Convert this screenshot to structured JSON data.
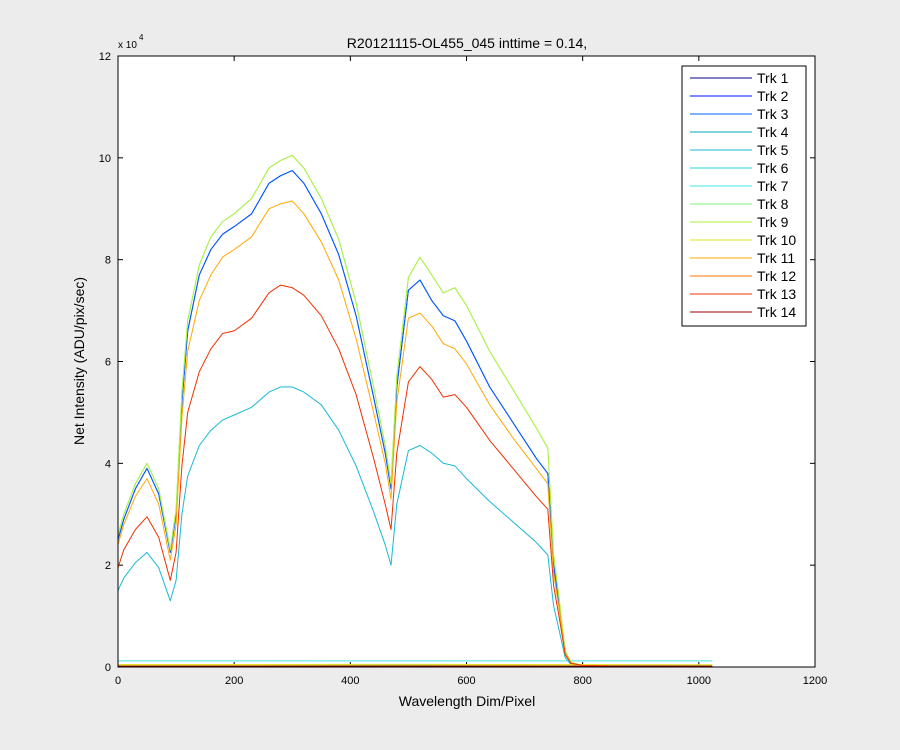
{
  "chart_data": {
    "type": "line",
    "title": "R20121115-OL455_045 inttime = 0.14,",
    "xlabel": "Wavelength Dim/Pixel",
    "ylabel": "Net Intensity (ADU/pix/sec)",
    "y_multiplier": "x 10",
    "y_multiplier_exponent": "4",
    "xlim": [
      0,
      1200
    ],
    "ylim": [
      0,
      120000
    ],
    "x_ticks": [
      0,
      200,
      400,
      600,
      800,
      1000,
      1200
    ],
    "x_tick_labels": [
      "0",
      "200",
      "400",
      "600",
      "800",
      "1000",
      "1200"
    ],
    "y_ticks": [
      0,
      20000,
      40000,
      60000,
      80000,
      100000,
      120000
    ],
    "y_tick_labels": [
      "0",
      "2",
      "4",
      "6",
      "8",
      "10",
      "12"
    ],
    "grid": false,
    "legend_position": "top-right",
    "series": [
      {
        "name": "Trk 1",
        "color": "#00008f",
        "x": [
          0,
          500,
          1023
        ],
        "y": [
          150,
          180,
          100
        ]
      },
      {
        "name": "Trk 2",
        "color": "#0010ff",
        "x": [
          0,
          10,
          30,
          50,
          70,
          90,
          100,
          110,
          120,
          140,
          160,
          180,
          200,
          230,
          260,
          280,
          300,
          320,
          350,
          380,
          410,
          440,
          460,
          470,
          480,
          500,
          520,
          540,
          560,
          580,
          600,
          640,
          680,
          720,
          740,
          750,
          760,
          770,
          780,
          800,
          850,
          1023
        ],
        "y": [
          25000,
          29000,
          35000,
          39000,
          34000,
          22500,
          30000,
          52000,
          66000,
          77000,
          82000,
          85000,
          86500,
          89000,
          95000,
          96500,
          97500,
          95000,
          89000,
          81000,
          69000,
          53000,
          42000,
          35000,
          55000,
          74000,
          76000,
          72000,
          69000,
          68000,
          64000,
          55000,
          48000,
          41000,
          38000,
          20000,
          12000,
          3000,
          800,
          300,
          200,
          200
        ]
      },
      {
        "name": "Trk 3",
        "color": "#0060ff",
        "x": [
          0,
          10,
          30,
          50,
          70,
          90,
          100,
          110,
          120,
          140,
          160,
          180,
          200,
          230,
          260,
          280,
          300,
          320,
          350,
          380,
          410,
          440,
          460,
          470,
          480,
          500,
          520,
          540,
          560,
          580,
          600,
          640,
          680,
          720,
          740,
          750,
          760,
          770,
          780,
          800,
          850,
          1023
        ],
        "y": [
          25000,
          29000,
          35000,
          39000,
          34000,
          22500,
          30000,
          52000,
          66000,
          77000,
          82000,
          85000,
          86500,
          89000,
          95000,
          96500,
          97500,
          95000,
          89000,
          81000,
          69000,
          53000,
          42000,
          35000,
          55000,
          74000,
          76000,
          72000,
          69000,
          68000,
          64000,
          55000,
          48000,
          41000,
          38000,
          20000,
          12000,
          3000,
          800,
          300,
          200,
          200
        ]
      },
      {
        "name": "Trk 4",
        "color": "#00a8c0",
        "x": [
          0,
          500,
          1023
        ],
        "y": [
          300,
          320,
          250
        ]
      },
      {
        "name": "Trk 5",
        "color": "#1ab8d8",
        "x": [
          0,
          10,
          30,
          50,
          70,
          90,
          100,
          110,
          120,
          140,
          160,
          180,
          200,
          230,
          260,
          280,
          300,
          320,
          350,
          380,
          410,
          440,
          460,
          470,
          480,
          500,
          520,
          540,
          560,
          580,
          600,
          640,
          680,
          720,
          740,
          750,
          760,
          770,
          780,
          800,
          850,
          1023
        ],
        "y": [
          15000,
          17500,
          20500,
          22500,
          19500,
          13000,
          17000,
          30000,
          37500,
          43500,
          46500,
          48500,
          49500,
          51000,
          54000,
          55000,
          55000,
          54000,
          51500,
          46500,
          39500,
          30500,
          24000,
          20000,
          32000,
          42500,
          43500,
          42000,
          40000,
          39500,
          37000,
          32500,
          28500,
          24500,
          22000,
          12000,
          7000,
          1800,
          500,
          200,
          150,
          150
        ]
      },
      {
        "name": "Trk 6",
        "color": "#2ad4d4",
        "x": [
          0,
          500,
          1023
        ],
        "y": [
          400,
          420,
          400
        ]
      },
      {
        "name": "Trk 7",
        "color": "#3ee6e6",
        "x": [
          0,
          500,
          1023
        ],
        "y": [
          1200,
          1200,
          1200
        ]
      },
      {
        "name": "Trk 8",
        "color": "#7ef07e",
        "x": [
          0,
          10,
          30,
          50,
          70,
          90,
          100,
          110,
          120,
          140,
          160,
          180,
          200,
          230,
          260,
          280,
          300,
          320,
          350,
          380,
          410,
          440,
          460,
          470,
          480,
          500,
          520,
          540,
          560,
          580,
          600,
          640,
          680,
          720,
          740,
          750,
          760,
          770,
          780,
          800,
          850,
          1023
        ],
        "y": [
          26000,
          30000,
          36000,
          40000,
          35000,
          23000,
          31000,
          54000,
          68000,
          79000,
          84500,
          87500,
          89000,
          92000,
          98000,
          99500,
          100500,
          98000,
          92000,
          84000,
          71500,
          55000,
          43500,
          36000,
          57000,
          76500,
          80500,
          77000,
          73500,
          74500,
          71000,
          62000,
          54500,
          47000,
          43000,
          22000,
          13000,
          3200,
          900,
          300,
          200,
          200
        ]
      },
      {
        "name": "Trk 9",
        "color": "#b0f040",
        "x": [
          0,
          10,
          30,
          50,
          70,
          90,
          100,
          110,
          120,
          140,
          160,
          180,
          200,
          230,
          260,
          280,
          300,
          320,
          350,
          380,
          410,
          440,
          460,
          470,
          480,
          500,
          520,
          540,
          560,
          580,
          600,
          640,
          680,
          720,
          740,
          750,
          760,
          770,
          780,
          800,
          850,
          1023
        ],
        "y": [
          26000,
          30000,
          36000,
          40000,
          35000,
          23000,
          31000,
          54000,
          68000,
          79000,
          84500,
          87500,
          89000,
          92000,
          98000,
          99500,
          100500,
          98000,
          92000,
          84000,
          71500,
          55000,
          43500,
          36000,
          57000,
          76500,
          80500,
          77000,
          73500,
          74500,
          71000,
          62000,
          54500,
          47000,
          43000,
          22000,
          13000,
          3200,
          900,
          300,
          200,
          200
        ]
      },
      {
        "name": "Trk 10",
        "color": "#e6e020",
        "x": [
          0,
          500,
          1023
        ],
        "y": [
          500,
          520,
          450
        ]
      },
      {
        "name": "Trk 11",
        "color": "#ffa800",
        "x": [
          0,
          10,
          30,
          50,
          70,
          90,
          100,
          110,
          120,
          140,
          160,
          180,
          200,
          230,
          260,
          280,
          300,
          320,
          350,
          380,
          410,
          440,
          460,
          470,
          480,
          500,
          520,
          540,
          560,
          580,
          600,
          640,
          680,
          720,
          740,
          750,
          760,
          770,
          780,
          800,
          850,
          1023
        ],
        "y": [
          24000,
          28000,
          33500,
          37000,
          32000,
          21000,
          28000,
          49000,
          62000,
          72000,
          77000,
          80500,
          82000,
          84500,
          90000,
          91000,
          91500,
          89000,
          83500,
          76000,
          64500,
          50000,
          40000,
          33000,
          52000,
          68500,
          69500,
          67000,
          63500,
          62500,
          59500,
          51500,
          45000,
          39000,
          36000,
          18500,
          11000,
          2800,
          800,
          300,
          200,
          200
        ]
      },
      {
        "name": "Trk 12",
        "color": "#ff7000",
        "x": [
          0,
          500,
          1023
        ],
        "y": [
          250,
          260,
          200
        ]
      },
      {
        "name": "Trk 13",
        "color": "#f03000",
        "x": [
          0,
          10,
          30,
          50,
          70,
          90,
          100,
          110,
          120,
          140,
          160,
          180,
          200,
          230,
          260,
          280,
          300,
          320,
          350,
          380,
          410,
          440,
          460,
          470,
          480,
          500,
          520,
          540,
          560,
          580,
          600,
          640,
          680,
          720,
          740,
          750,
          760,
          770,
          780,
          800,
          850,
          1023
        ],
        "y": [
          19500,
          23000,
          27000,
          29500,
          25500,
          17000,
          22500,
          39500,
          50000,
          58000,
          62500,
          65500,
          66000,
          68500,
          73500,
          75000,
          74500,
          73000,
          69000,
          62500,
          53500,
          41000,
          32000,
          27000,
          42000,
          56000,
          59000,
          56500,
          53000,
          53500,
          51000,
          44500,
          39000,
          33500,
          31000,
          16000,
          9500,
          2400,
          700,
          300,
          200,
          200
        ]
      },
      {
        "name": "Trk 14",
        "color": "#9a0000",
        "x": [
          0,
          500,
          1023
        ],
        "y": [
          100,
          120,
          80
        ]
      }
    ]
  }
}
